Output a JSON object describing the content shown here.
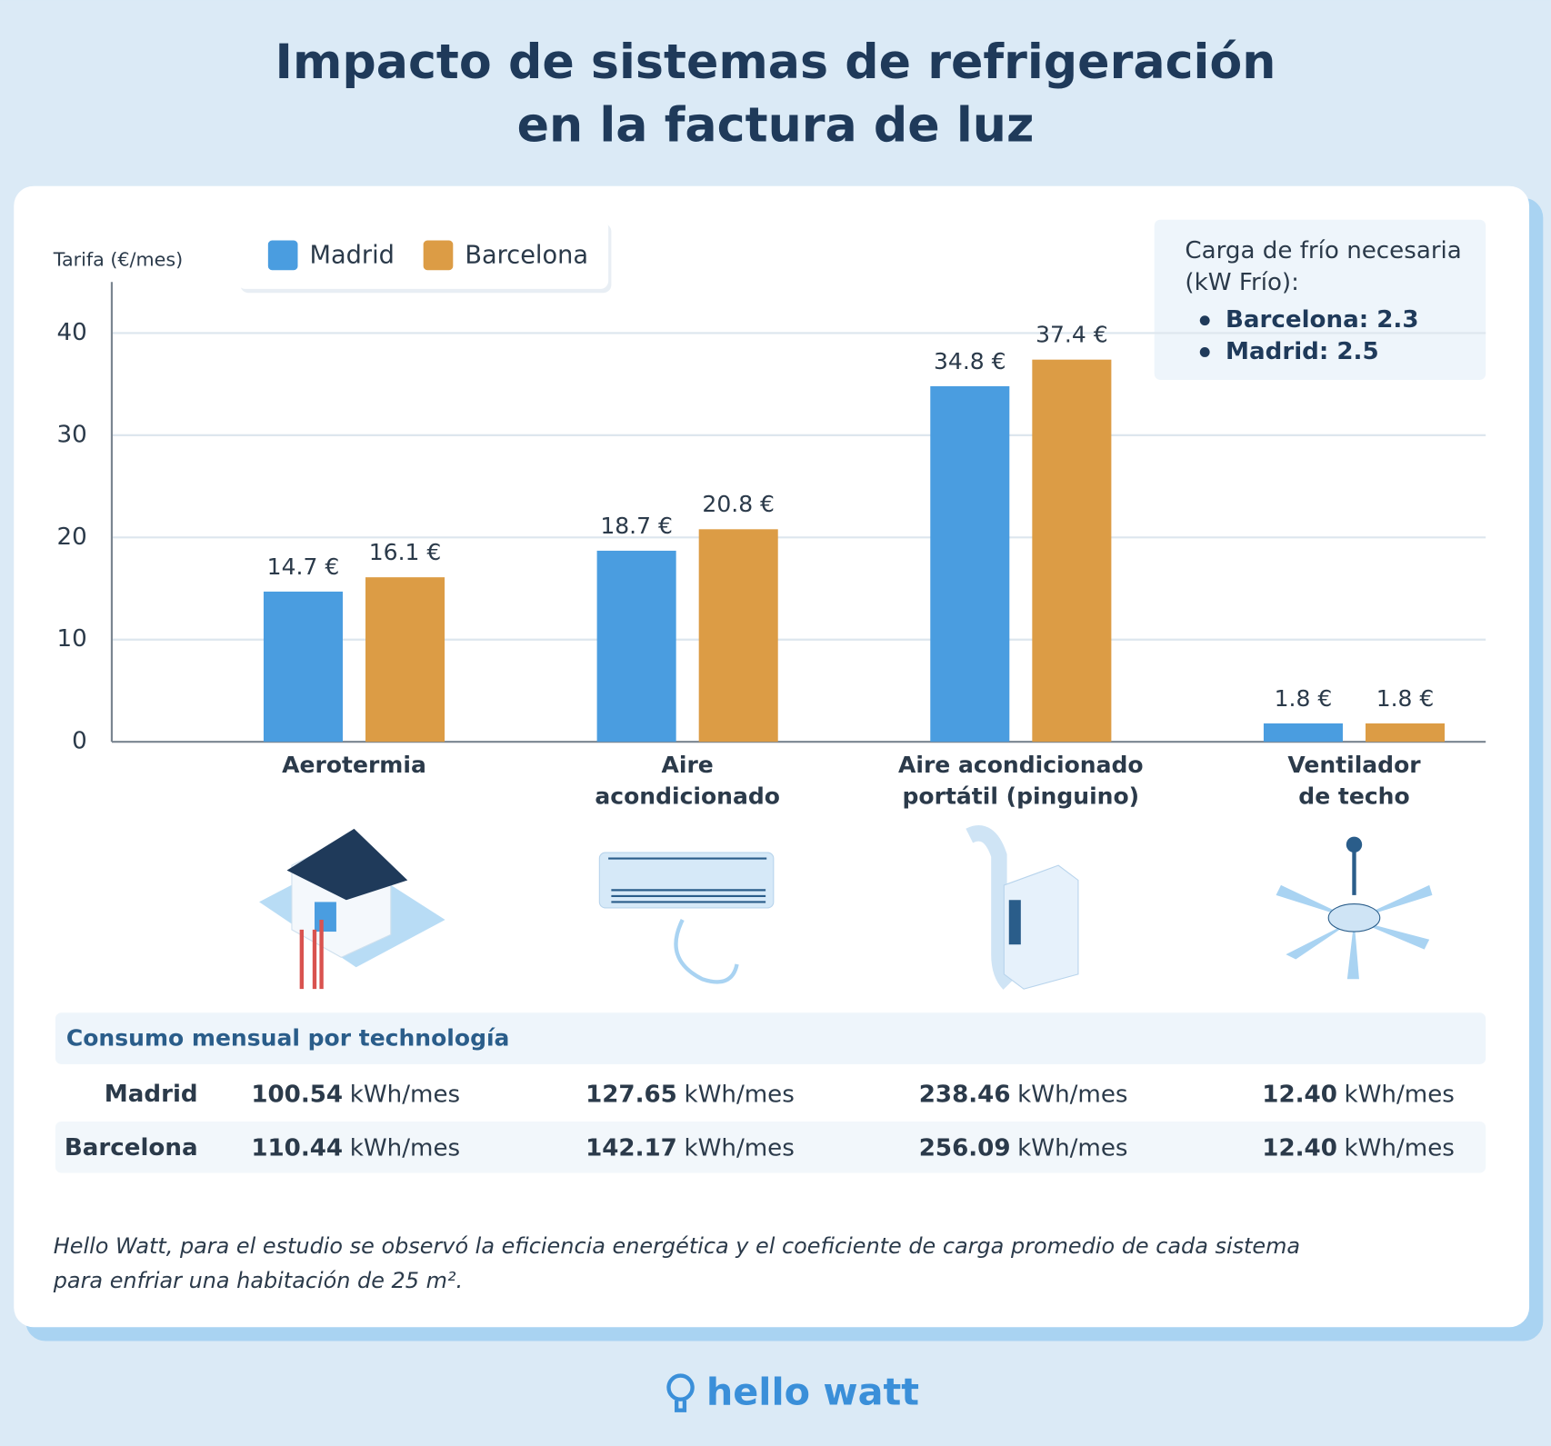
{
  "chart_data": {
    "type": "bar",
    "title": [
      "Impacto de sistemas de refrigeración",
      "en la factura de luz"
    ],
    "y_label": "Tarifa (€/mes)",
    "categories": [
      "Aerotermia",
      "Aire\nacondicionado",
      "Aire acondicionado\nportátil (pinguino)",
      "Ventilador\nde techo"
    ],
    "series": [
      {
        "name": "Madrid",
        "color": "#4a9de0",
        "values": [
          14.7,
          18.7,
          34.8,
          1.8
        ],
        "value_labels": [
          "14.7 €",
          "18.7 €",
          "34.8 €",
          "1.8 €"
        ]
      },
      {
        "name": "Barcelona",
        "color": "#dc9c45",
        "values": [
          16.1,
          20.8,
          37.4,
          1.8
        ],
        "value_labels": [
          "16.1 €",
          "20.8 €",
          "37.4 €",
          "1.8 €"
        ]
      }
    ],
    "ylim": [
      0,
      45
    ],
    "yticks": [
      0,
      10,
      20,
      30,
      40
    ],
    "grid": true,
    "legend": "top-left",
    "annotation": {
      "title": [
        "Carga de frío necesaria",
        "(kW Frío):"
      ],
      "items": [
        "Barcelona: 2.3",
        "Madrid: 2.5"
      ]
    }
  },
  "table": {
    "title": "Consumo mensual por technología",
    "unit": "kWh/mes",
    "rows": [
      {
        "label": "Madrid",
        "values": [
          "100.54",
          "127.65",
          "238.46",
          "12.40"
        ]
      },
      {
        "label": "Barcelona",
        "values": [
          "110.44",
          "142.17",
          "256.09",
          "12.40"
        ]
      }
    ]
  },
  "footnote": [
    "Hello Watt, para el estudio se observó la eficiencia energética y el coeficiente de carga promedio de cada sistema",
    "para enfriar una habitación de 25 m²."
  ],
  "logo": "hello watt"
}
